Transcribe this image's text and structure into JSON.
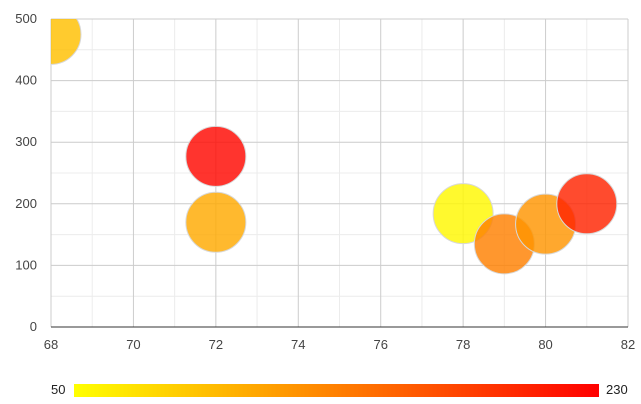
{
  "chart_data": {
    "type": "scatter",
    "title": "",
    "xlabel": "",
    "ylabel": "",
    "xlim": [
      68,
      82
    ],
    "ylim": [
      0,
      500
    ],
    "x_ticks": [
      "68",
      "70",
      "72",
      "74",
      "76",
      "78",
      "80",
      "82"
    ],
    "y_ticks": [
      "0",
      "100",
      "200",
      "300",
      "400",
      "500"
    ],
    "grid": true,
    "points": [
      {
        "x": 68,
        "y": 475,
        "color_value": 95
      },
      {
        "x": 72,
        "y": 277,
        "color_value": 225
      },
      {
        "x": 72,
        "y": 170,
        "color_value": 110
      },
      {
        "x": 78,
        "y": 184,
        "color_value": 55
      },
      {
        "x": 79,
        "y": 135,
        "color_value": 140
      },
      {
        "x": 80,
        "y": 167,
        "color_value": 125
      },
      {
        "x": 81,
        "y": 200,
        "color_value": 205
      }
    ],
    "colorbar": {
      "min_label": "50",
      "max_label": "230",
      "min": 50,
      "max": 230,
      "colors": [
        "#ffff00",
        "#ff0000"
      ]
    }
  }
}
